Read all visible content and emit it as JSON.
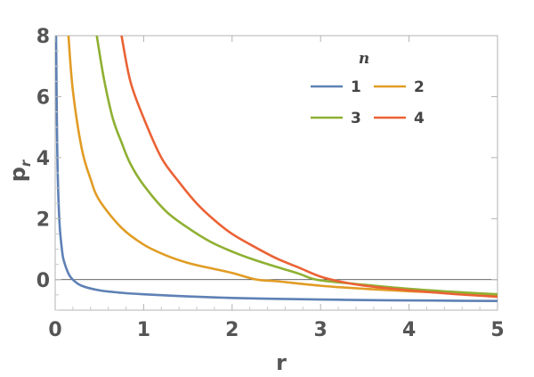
{
  "chart_data": {
    "type": "line",
    "title": "",
    "xlabel": "r",
    "ylabel": "p",
    "ylabel_subscript": "r",
    "xlim": [
      0,
      5
    ],
    "ylim": [
      -1,
      8
    ],
    "xticks": [
      0,
      1,
      2,
      3,
      4,
      5
    ],
    "yticks": [
      0,
      2,
      4,
      6,
      8
    ],
    "x_tick_labels": [
      "0",
      "1",
      "2",
      "3",
      "4",
      "5"
    ],
    "y_tick_labels": [
      "0",
      "2",
      "4",
      "6",
      "8"
    ],
    "reference_line_y": 0,
    "grid": false,
    "legend": {
      "title": "n",
      "placement": "top-right",
      "columns": 2
    },
    "series": [
      {
        "name": "1",
        "color": "#5E81B5",
        "x": [
          0.01,
          0.02,
          0.03,
          0.05,
          0.08,
          0.1,
          0.15,
          0.2,
          0.3,
          0.5,
          0.75,
          1,
          1.5,
          2,
          2.5,
          3,
          3.5,
          4,
          4.5,
          5
        ],
        "y": [
          8,
          5,
          3.3,
          1.8,
          0.9,
          0.6,
          0.2,
          0.0,
          -0.2,
          -0.35,
          -0.43,
          -0.48,
          -0.55,
          -0.6,
          -0.63,
          -0.65,
          -0.67,
          -0.68,
          -0.69,
          -0.7
        ]
      },
      {
        "name": "2",
        "color": "#E19C24",
        "x": [
          0.15,
          0.2,
          0.3,
          0.4,
          0.5,
          0.75,
          1,
          1.25,
          1.5,
          1.75,
          2,
          2.28,
          2.5,
          3,
          3.5,
          4,
          4.5,
          5
        ],
        "y": [
          8,
          6.2,
          4.3,
          3.3,
          2.6,
          1.7,
          1.15,
          0.8,
          0.55,
          0.38,
          0.22,
          0.0,
          -0.05,
          -0.2,
          -0.3,
          -0.38,
          -0.44,
          -0.5
        ]
      },
      {
        "name": "3",
        "color": "#8FB032",
        "x": [
          0.47,
          0.55,
          0.65,
          0.75,
          0.85,
          1,
          1.25,
          1.5,
          1.75,
          2,
          2.25,
          2.5,
          2.75,
          2.95,
          3.25,
          3.5,
          4,
          4.5,
          5
        ],
        "y": [
          8,
          6.6,
          5.3,
          4.5,
          3.8,
          3.1,
          2.25,
          1.7,
          1.25,
          0.92,
          0.65,
          0.42,
          0.2,
          0.0,
          -0.1,
          -0.17,
          -0.3,
          -0.4,
          -0.48
        ]
      },
      {
        "name": "4",
        "color": "#EB6235",
        "x": [
          0.75,
          0.85,
          1,
          1.2,
          1.4,
          1.6,
          1.8,
          2,
          2.25,
          2.5,
          2.75,
          3,
          3.25,
          3.5,
          4,
          4.5,
          5
        ],
        "y": [
          8,
          6.5,
          5.3,
          4.0,
          3.2,
          2.5,
          1.95,
          1.5,
          1.08,
          0.7,
          0.4,
          0.1,
          -0.08,
          -0.2,
          -0.35,
          -0.47,
          -0.56
        ]
      }
    ]
  }
}
